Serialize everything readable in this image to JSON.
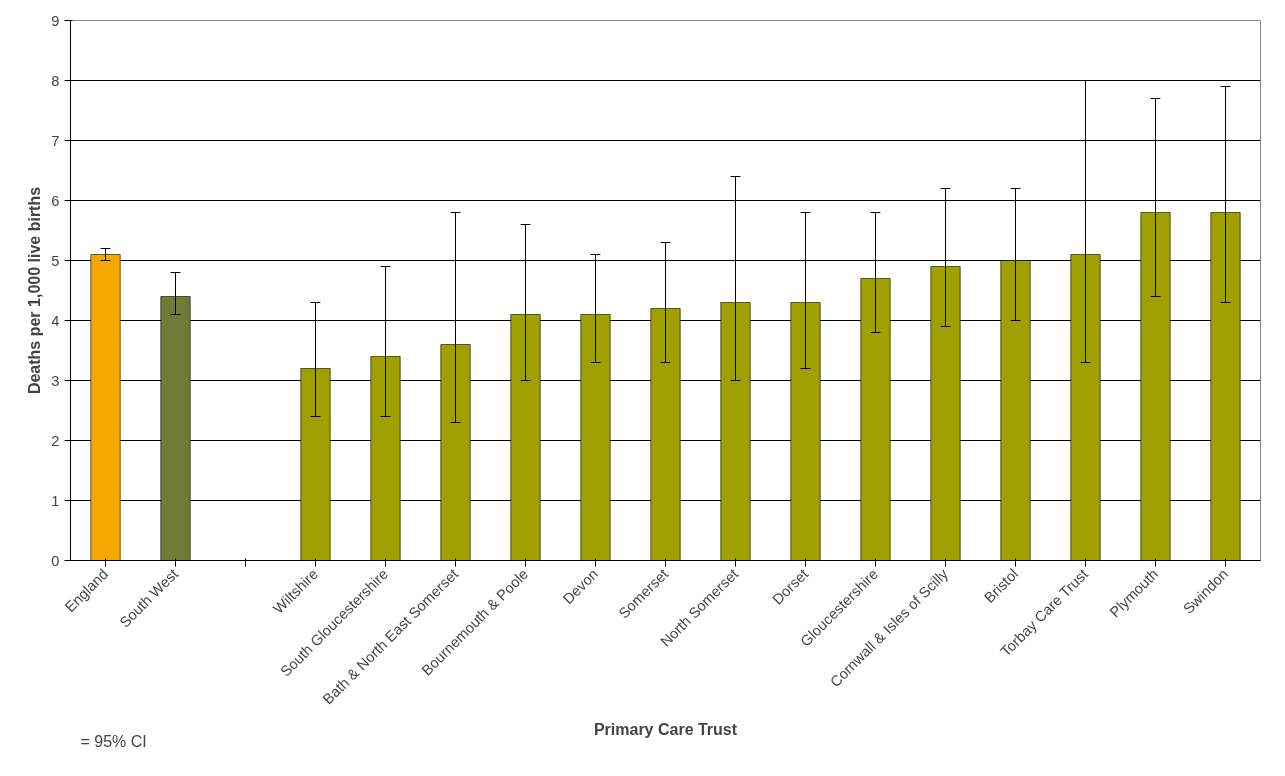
{
  "chart_data": {
    "type": "bar",
    "xlabel": "Primary Care Trust",
    "ylabel": "Deaths per 1,000 live births",
    "categories": [
      "England",
      "South West",
      null,
      "Wiltshire",
      "South Gloucestershire",
      "Bath & North East Somerset",
      "Bournemouth & Poole",
      "Devon",
      "Somerset",
      "North Somerset",
      "Dorset",
      "Gloucestershire",
      "Cornwall & Isles of Scilly",
      "Bristol",
      "Torbay Care Trust",
      "Plymouth",
      "Swindon"
    ],
    "values": [
      5.1,
      4.4,
      null,
      3.2,
      3.4,
      3.6,
      4.1,
      4.1,
      4.2,
      4.3,
      4.3,
      4.7,
      4.9,
      5.0,
      5.1,
      5.8,
      5.8
    ],
    "errors": [
      [
        5.0,
        5.2
      ],
      [
        4.1,
        4.8
      ],
      null,
      [
        2.4,
        4.3
      ],
      [
        2.4,
        4.9
      ],
      [
        2.3,
        5.8
      ],
      [
        3.0,
        5.6
      ],
      [
        3.3,
        5.1
      ],
      [
        3.3,
        5.3
      ],
      [
        3.0,
        6.4
      ],
      [
        3.2,
        5.8
      ],
      [
        3.8,
        5.8
      ],
      [
        3.9,
        6.2
      ],
      [
        4.0,
        6.2
      ],
      [
        3.3,
        8.0
      ],
      [
        4.4,
        7.7
      ],
      [
        4.3,
        7.9
      ]
    ],
    "colors": [
      "#f5a800",
      "#6f7b37",
      null,
      "#a0a000",
      "#a0a000",
      "#a0a000",
      "#a0a000",
      "#a0a000",
      "#a0a000",
      "#a0a000",
      "#a0a000",
      "#a0a000",
      "#a0a000",
      "#a0a000",
      "#a0a000",
      "#a0a000",
      "#a0a000"
    ],
    "ylim": [
      0,
      9
    ],
    "yticks": [
      0,
      1,
      2,
      3,
      4,
      5,
      6,
      7,
      8,
      9
    ],
    "grid": "y",
    "annotations": [
      "= 95% CI"
    ]
  }
}
